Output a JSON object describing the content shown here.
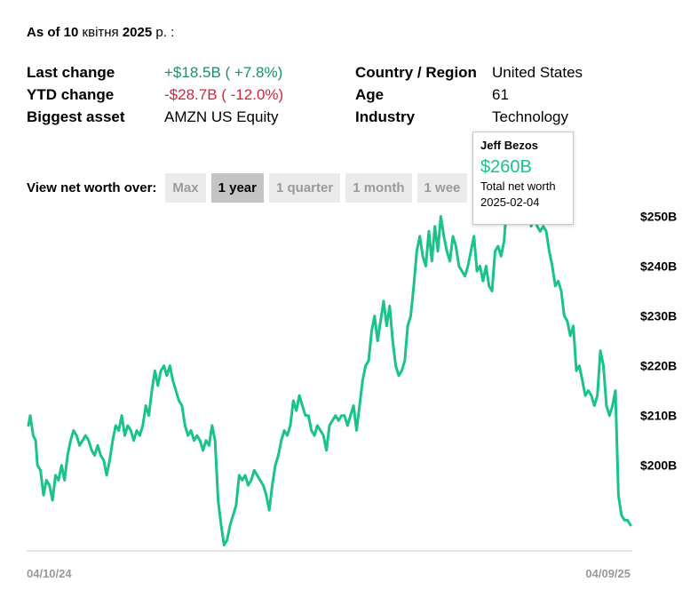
{
  "header": {
    "asof_prefix": "As of 10",
    "asof_month": "квітня",
    "asof_year": "2025",
    "asof_suffix": "р. :"
  },
  "stats_left": [
    {
      "label": "Last change",
      "value": "+$18.5B ( +7.8%)",
      "tone": "pos"
    },
    {
      "label": "YTD change",
      "value": "-$28.7B ( -12.0%)",
      "tone": "neg"
    },
    {
      "label": "Biggest asset",
      "value": "AMZN US Equity",
      "tone": ""
    }
  ],
  "stats_right": [
    {
      "label": "Country / Region",
      "value": "United States"
    },
    {
      "label": "Age",
      "value": "61"
    },
    {
      "label": "Industry",
      "value": "Technology"
    }
  ],
  "range_selector": {
    "label": "View net worth over:",
    "options": [
      "Max",
      "1 year",
      "1 quarter",
      "1 month",
      "1 wee"
    ],
    "selected": "1 year"
  },
  "tooltip": {
    "name": "Jeff Bezos",
    "value": "$260B",
    "subtitle": "Total net worth",
    "date": "2025-02-04"
  },
  "colors": {
    "line": "#19c38b",
    "positive": "#19935f",
    "negative": "#d7223a"
  },
  "chart_data": {
    "type": "line",
    "xlabel": "",
    "ylabel": "",
    "x_tick_labels": [
      "04/10/24",
      "04/09/25"
    ],
    "y_tick_labels": [
      "$250B",
      "$240B",
      "$230B",
      "$220B",
      "$210B",
      "$200B"
    ],
    "y_ticks": [
      250,
      240,
      230,
      220,
      210,
      200
    ],
    "ylim": [
      183,
      264
    ],
    "xlim": [
      0,
      1
    ],
    "grid": false,
    "highlight_point": {
      "x": 0.82,
      "y": 260
    },
    "series": [
      {
        "name": "",
        "points": [
          [
            0.0,
            208
          ],
          [
            0.003,
            210
          ],
          [
            0.008,
            206
          ],
          [
            0.012,
            205
          ],
          [
            0.015,
            200
          ],
          [
            0.02,
            199
          ],
          [
            0.025,
            194
          ],
          [
            0.03,
            197
          ],
          [
            0.035,
            196
          ],
          [
            0.04,
            193
          ],
          [
            0.045,
            198
          ],
          [
            0.05,
            197
          ],
          [
            0.055,
            200
          ],
          [
            0.06,
            197
          ],
          [
            0.065,
            202
          ],
          [
            0.07,
            205
          ],
          [
            0.075,
            207
          ],
          [
            0.08,
            206
          ],
          [
            0.085,
            204
          ],
          [
            0.09,
            205
          ],
          [
            0.095,
            206
          ],
          [
            0.1,
            205
          ],
          [
            0.105,
            203
          ],
          [
            0.11,
            202
          ],
          [
            0.115,
            204
          ],
          [
            0.12,
            202
          ],
          [
            0.125,
            201
          ],
          [
            0.13,
            198
          ],
          [
            0.135,
            201
          ],
          [
            0.14,
            205
          ],
          [
            0.145,
            208
          ],
          [
            0.15,
            207
          ],
          [
            0.155,
            210
          ],
          [
            0.16,
            206
          ],
          [
            0.165,
            208
          ],
          [
            0.17,
            207
          ],
          [
            0.175,
            205
          ],
          [
            0.18,
            207
          ],
          [
            0.185,
            206
          ],
          [
            0.19,
            208
          ],
          [
            0.195,
            212
          ],
          [
            0.2,
            210
          ],
          [
            0.205,
            215
          ],
          [
            0.21,
            219
          ],
          [
            0.215,
            216
          ],
          [
            0.22,
            219
          ],
          [
            0.225,
            220
          ],
          [
            0.23,
            218
          ],
          [
            0.235,
            220
          ],
          [
            0.24,
            217
          ],
          [
            0.245,
            215
          ],
          [
            0.25,
            213
          ],
          [
            0.255,
            212
          ],
          [
            0.26,
            208
          ],
          [
            0.265,
            206
          ],
          [
            0.27,
            207
          ],
          [
            0.275,
            205
          ],
          [
            0.28,
            206
          ],
          [
            0.285,
            205
          ],
          [
            0.29,
            203
          ],
          [
            0.295,
            205
          ],
          [
            0.3,
            204
          ],
          [
            0.305,
            208
          ],
          [
            0.31,
            205
          ],
          [
            0.315,
            193
          ],
          [
            0.32,
            188
          ],
          [
            0.325,
            184
          ],
          [
            0.33,
            185
          ],
          [
            0.335,
            188
          ],
          [
            0.34,
            190
          ],
          [
            0.345,
            192
          ],
          [
            0.35,
            198
          ],
          [
            0.355,
            197
          ],
          [
            0.36,
            198
          ],
          [
            0.365,
            196
          ],
          [
            0.37,
            197
          ],
          [
            0.375,
            199
          ],
          [
            0.38,
            198
          ],
          [
            0.385,
            197
          ],
          [
            0.39,
            196
          ],
          [
            0.395,
            194
          ],
          [
            0.4,
            191
          ],
          [
            0.405,
            196
          ],
          [
            0.41,
            200
          ],
          [
            0.415,
            202
          ],
          [
            0.42,
            205
          ],
          [
            0.425,
            207
          ],
          [
            0.43,
            206
          ],
          [
            0.435,
            208
          ],
          [
            0.44,
            213
          ],
          [
            0.445,
            211
          ],
          [
            0.45,
            214
          ],
          [
            0.455,
            212
          ],
          [
            0.46,
            210
          ],
          [
            0.465,
            210
          ],
          [
            0.47,
            207
          ],
          [
            0.475,
            206
          ],
          [
            0.48,
            208
          ],
          [
            0.485,
            207
          ],
          [
            0.49,
            206
          ],
          [
            0.495,
            203
          ],
          [
            0.5,
            208
          ],
          [
            0.505,
            209
          ],
          [
            0.51,
            210
          ],
          [
            0.515,
            209
          ],
          [
            0.52,
            210
          ],
          [
            0.525,
            210
          ],
          [
            0.53,
            208
          ],
          [
            0.535,
            210
          ],
          [
            0.54,
            212
          ],
          [
            0.545,
            207
          ],
          [
            0.55,
            212
          ],
          [
            0.555,
            217
          ],
          [
            0.56,
            220
          ],
          [
            0.565,
            221
          ],
          [
            0.57,
            227
          ],
          [
            0.575,
            230
          ],
          [
            0.58,
            225
          ],
          [
            0.585,
            229
          ],
          [
            0.59,
            233
          ],
          [
            0.595,
            228
          ],
          [
            0.6,
            232
          ],
          [
            0.605,
            225
          ],
          [
            0.61,
            220
          ],
          [
            0.615,
            218
          ],
          [
            0.62,
            219
          ],
          [
            0.625,
            221
          ],
          [
            0.63,
            228
          ],
          [
            0.635,
            230
          ],
          [
            0.64,
            236
          ],
          [
            0.645,
            243
          ],
          [
            0.65,
            246
          ],
          [
            0.655,
            242
          ],
          [
            0.66,
            240
          ],
          [
            0.665,
            247
          ],
          [
            0.67,
            241
          ],
          [
            0.675,
            248
          ],
          [
            0.68,
            243
          ],
          [
            0.685,
            250
          ],
          [
            0.69,
            246
          ],
          [
            0.695,
            243
          ],
          [
            0.7,
            241
          ],
          [
            0.705,
            246
          ],
          [
            0.71,
            244
          ],
          [
            0.715,
            240
          ],
          [
            0.72,
            239
          ],
          [
            0.725,
            238
          ],
          [
            0.73,
            240
          ],
          [
            0.735,
            243
          ],
          [
            0.74,
            246
          ],
          [
            0.745,
            239
          ],
          [
            0.75,
            240
          ],
          [
            0.755,
            237
          ],
          [
            0.76,
            240
          ],
          [
            0.765,
            236
          ],
          [
            0.77,
            235
          ],
          [
            0.775,
            243
          ],
          [
            0.78,
            244
          ],
          [
            0.785,
            242
          ],
          [
            0.79,
            245
          ],
          [
            0.795,
            253
          ],
          [
            0.8,
            254
          ],
          [
            0.805,
            254
          ],
          [
            0.81,
            255
          ],
          [
            0.815,
            255
          ],
          [
            0.82,
            260
          ],
          [
            0.825,
            257
          ],
          [
            0.83,
            258
          ],
          [
            0.835,
            248
          ],
          [
            0.84,
            250
          ],
          [
            0.845,
            248
          ],
          [
            0.85,
            247
          ],
          [
            0.855,
            248
          ],
          [
            0.86,
            247
          ],
          [
            0.865,
            243
          ],
          [
            0.87,
            240
          ],
          [
            0.875,
            236
          ],
          [
            0.88,
            237
          ],
          [
            0.885,
            235
          ],
          [
            0.89,
            230
          ],
          [
            0.895,
            229
          ],
          [
            0.9,
            226
          ],
          [
            0.905,
            228
          ],
          [
            0.91,
            219
          ],
          [
            0.915,
            220
          ],
          [
            0.92,
            217
          ],
          [
            0.925,
            214
          ],
          [
            0.93,
            215
          ],
          [
            0.935,
            214
          ],
          [
            0.94,
            212
          ],
          [
            0.945,
            214
          ],
          [
            0.95,
            223
          ],
          [
            0.955,
            220
          ],
          [
            0.96,
            212
          ],
          [
            0.965,
            210
          ],
          [
            0.97,
            212
          ],
          [
            0.975,
            215
          ],
          [
            0.98,
            194
          ],
          [
            0.985,
            190
          ],
          [
            0.99,
            189
          ],
          [
            0.995,
            189
          ],
          [
            1.0,
            188
          ]
        ]
      }
    ]
  }
}
